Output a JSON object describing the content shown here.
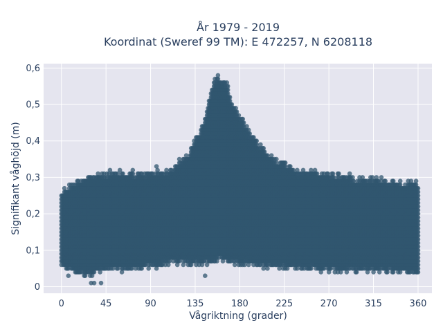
{
  "chart_data": {
    "type": "scatter",
    "title_line1": "År 1979 - 2019",
    "title_line2": "Koordinat (Sweref 99 TM): E 472257, N 6208118",
    "xlabel": "Vågriktning (grader)",
    "ylabel": "Signifikant våghöjd (m)",
    "xlim": [
      -18,
      374
    ],
    "ylim": [
      -0.018,
      0.612
    ],
    "x_ticks": [
      0,
      45,
      90,
      135,
      180,
      225,
      270,
      315,
      360
    ],
    "x_tick_labels": [
      "0",
      "45",
      "90",
      "135",
      "180",
      "225",
      "270",
      "315",
      "360"
    ],
    "y_ticks": [
      0,
      0.1,
      0.2,
      0.3,
      0.4,
      0.5,
      0.6
    ],
    "y_tick_labels": [
      "0",
      "0,1",
      "0,2",
      "0,3",
      "0,4",
      "0,5",
      "0,6"
    ],
    "grid": true,
    "marker_color": "#30566f",
    "plot_background": "#e5e5ef",
    "x_step_deg": 1,
    "y_step_m": 0.01,
    "envelope": [
      {
        "x": 0,
        "low": 0.05,
        "high": 0.27
      },
      {
        "x": 20,
        "low": 0.03,
        "high": 0.31
      },
      {
        "x": 45,
        "low": 0.04,
        "high": 0.32
      },
      {
        "x": 90,
        "low": 0.05,
        "high": 0.32
      },
      {
        "x": 110,
        "low": 0.06,
        "high": 0.33
      },
      {
        "x": 130,
        "low": 0.06,
        "high": 0.38
      },
      {
        "x": 145,
        "low": 0.06,
        "high": 0.47
      },
      {
        "x": 152,
        "low": 0.06,
        "high": 0.56
      },
      {
        "x": 158,
        "low": 0.07,
        "high": 0.59
      },
      {
        "x": 165,
        "low": 0.07,
        "high": 0.58
      },
      {
        "x": 175,
        "low": 0.06,
        "high": 0.5
      },
      {
        "x": 190,
        "low": 0.06,
        "high": 0.43
      },
      {
        "x": 210,
        "low": 0.05,
        "high": 0.37
      },
      {
        "x": 240,
        "low": 0.05,
        "high": 0.33
      },
      {
        "x": 270,
        "low": 0.04,
        "high": 0.32
      },
      {
        "x": 300,
        "low": 0.04,
        "high": 0.31
      },
      {
        "x": 340,
        "low": 0.04,
        "high": 0.3
      },
      {
        "x": 360,
        "low": 0.03,
        "high": 0.29
      }
    ],
    "outliers": [
      {
        "x": 30,
        "y": 0.01
      },
      {
        "x": 33,
        "y": 0.01
      },
      {
        "x": 40,
        "y": 0.01
      },
      {
        "x": 7,
        "y": 0.03
      },
      {
        "x": 145,
        "y": 0.03
      },
      {
        "x": 96,
        "y": 0.33
      },
      {
        "x": 72,
        "y": 0.32
      },
      {
        "x": 59,
        "y": 0.32
      },
      {
        "x": 49,
        "y": 0.32
      }
    ]
  }
}
